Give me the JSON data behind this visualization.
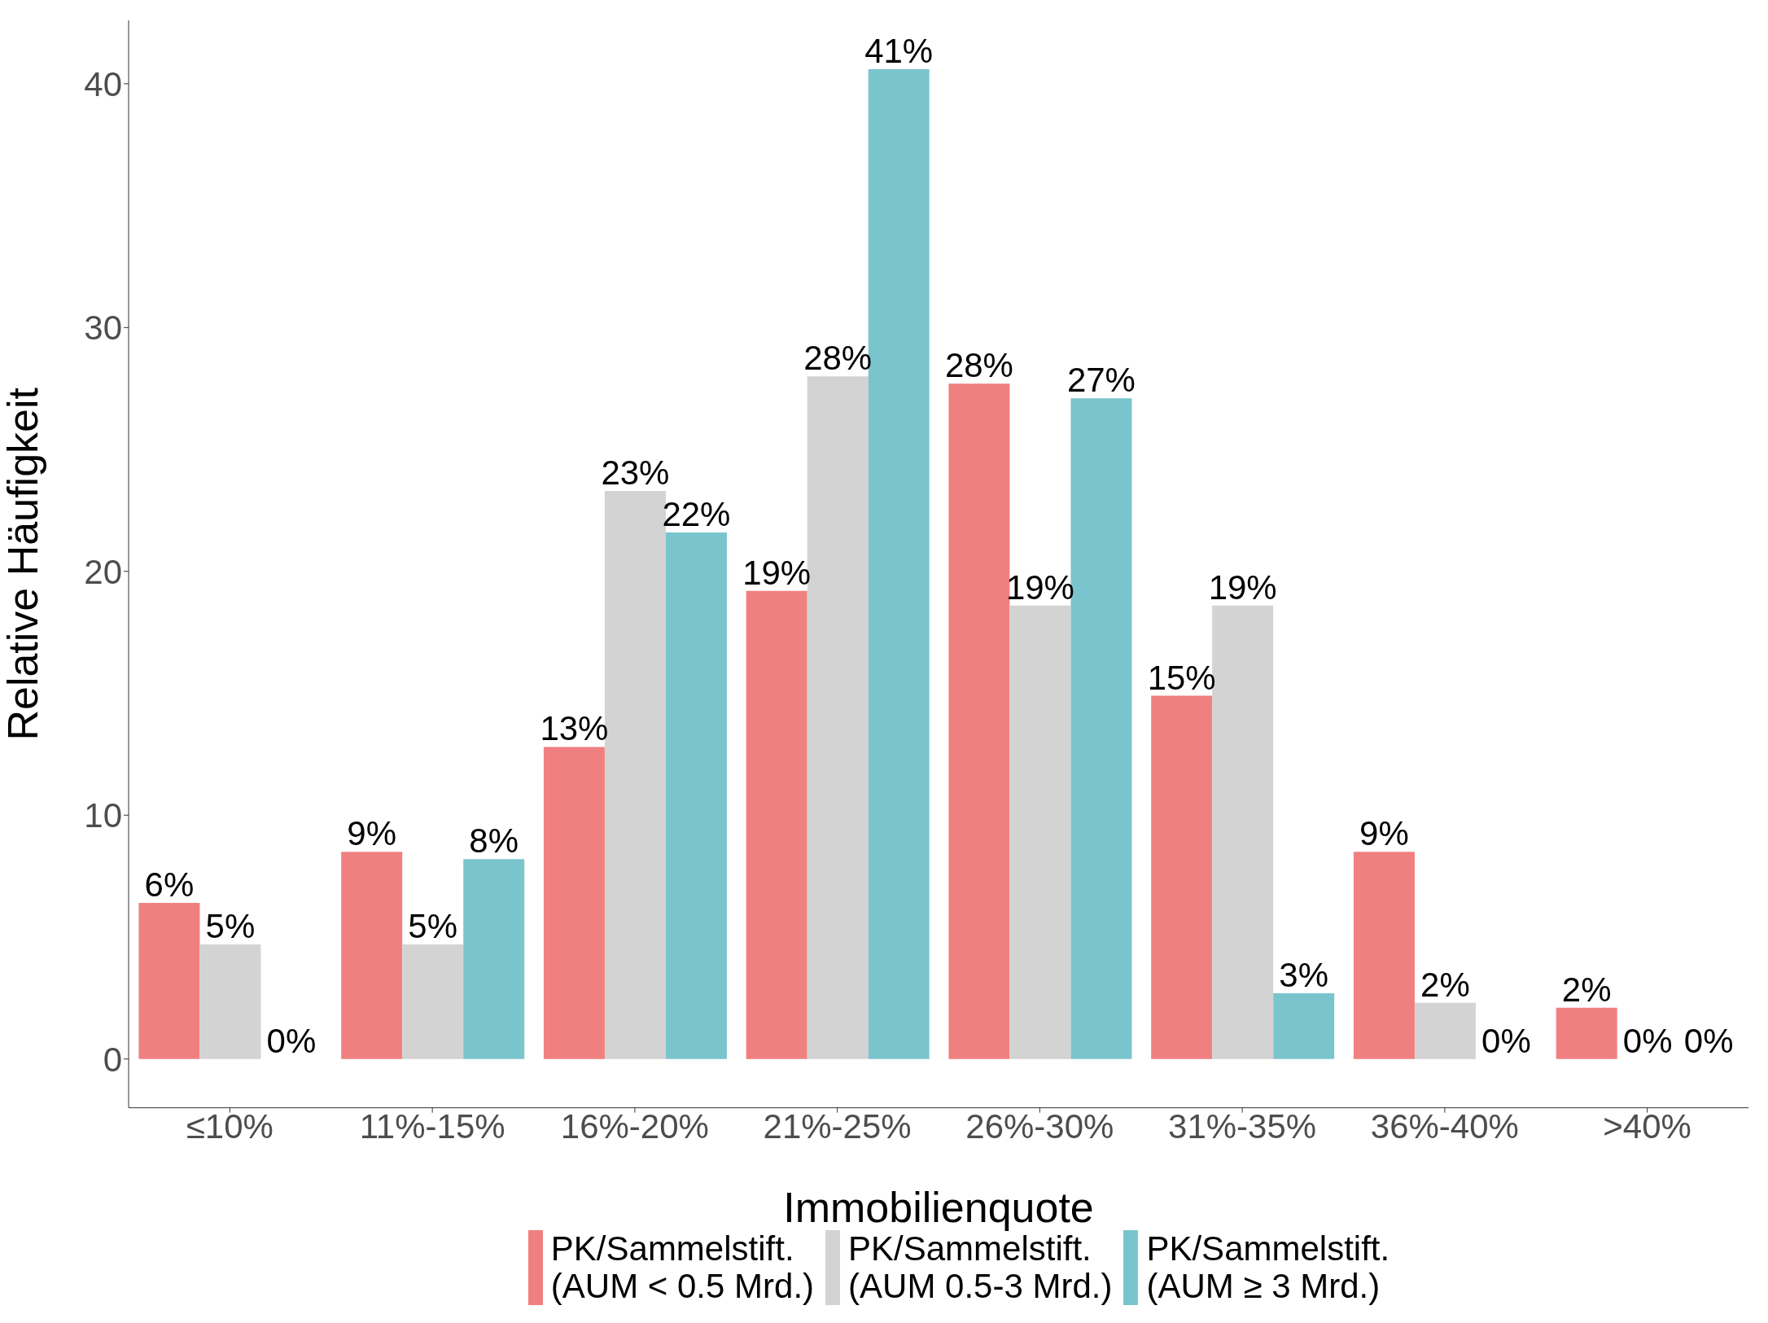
{
  "chart_data": {
    "type": "bar",
    "xlabel": "Immobilienquote",
    "ylabel": "Relative Häufigkeit",
    "categories": [
      "≤10%",
      "11%-15%",
      "16%-20%",
      "21%-25%",
      "26%-30%",
      "31%-35%",
      "36%-40%",
      ">40%"
    ],
    "series": [
      {
        "name": "PK/Sammelstift.\n(AUM < 0.5 Mrd.)",
        "color": "#f08080",
        "values": [
          6.4,
          8.5,
          12.8,
          19.2,
          27.7,
          14.9,
          8.5,
          2.1
        ],
        "value_labels": [
          "6%",
          "9%",
          "13%",
          "19%",
          "28%",
          "15%",
          "9%",
          "2%"
        ]
      },
      {
        "name": "PK/Sammelstift.\n(AUM 0.5-3 Mrd.)",
        "color": "#d3d3d3",
        "values": [
          4.7,
          4.7,
          23.3,
          28.0,
          18.6,
          18.6,
          2.3,
          0
        ],
        "value_labels": [
          "5%",
          "5%",
          "23%",
          "28%",
          "19%",
          "19%",
          "2%",
          "0%"
        ]
      },
      {
        "name": "PK/Sammelstift.\n(AUM ≥ 3 Mrd.)",
        "color": "#7ac5cd",
        "values": [
          0,
          8.2,
          21.6,
          40.6,
          27.1,
          2.7,
          0,
          0
        ],
        "value_labels": [
          "0%",
          "8%",
          "22%",
          "41%",
          "27%",
          "3%",
          "0%",
          "0%"
        ]
      }
    ],
    "ylim": [
      -2,
      42.6
    ],
    "yticks": [
      0,
      10,
      20,
      30,
      40
    ],
    "grid": false,
    "legend": "bottom"
  }
}
